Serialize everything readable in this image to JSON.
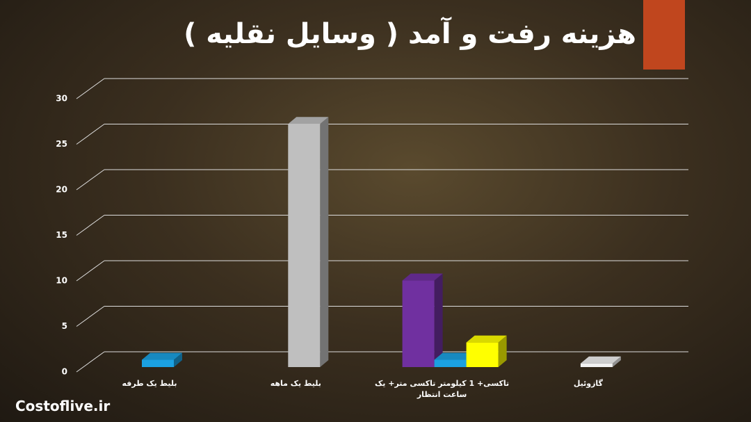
{
  "chart_data": {
    "type": "bar3d",
    "title": "هزینه رفت و آمد ( وسایل نقلیه )",
    "categories": [
      "بلیط یک طرفه",
      "بلیط یک ماهه",
      "تاکسی+ 1 کیلومتر تاکسی متر+ یک ساعت انتظار",
      "گازوئیل"
    ],
    "series": [
      {
        "color": "#7030a0",
        "values": [
          null,
          null,
          9.5,
          null
        ]
      },
      {
        "color": "#1ba1e2",
        "values": [
          0.8,
          null,
          0.8,
          null
        ]
      },
      {
        "color": "#ffff00",
        "values": [
          null,
          null,
          2.7,
          null
        ]
      },
      {
        "color": "#bfbfbf",
        "values": [
          null,
          26.7,
          null,
          null
        ]
      },
      {
        "color": "#f2f2f2",
        "values": [
          null,
          null,
          null,
          0.4
        ]
      }
    ],
    "ylim": [
      0,
      30
    ],
    "yticks": [
      0,
      5,
      10,
      15,
      20,
      25,
      30
    ],
    "grid": true
  },
  "watermark": "Costoflive.ir"
}
